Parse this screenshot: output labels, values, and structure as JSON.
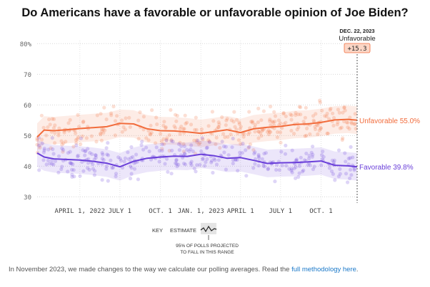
{
  "title": "Do Americans have a favorable or unfavorable opinion of Joe Biden?",
  "chart_data": {
    "type": "line",
    "x_start": "2021-12-25",
    "x_end": "2023-12-22",
    "ylim": [
      28,
      81
    ],
    "y_ticks": [
      30,
      40,
      50,
      60,
      70
    ],
    "y_tick_labels": [
      "30",
      "40",
      "50",
      "60",
      "70"
    ],
    "y_top_label": "80%",
    "x_ticks": [
      {
        "date": "2022-04-01",
        "label": "APRIL 1, 2022"
      },
      {
        "date": "2022-07-01",
        "label": "JULY 1"
      },
      {
        "date": "2022-10-01",
        "label": "OCT. 1"
      },
      {
        "date": "2023-01-01",
        "label": "JAN. 1, 2023"
      },
      {
        "date": "2023-04-01",
        "label": "APRIL 1"
      },
      {
        "date": "2023-07-01",
        "label": "JULY 1"
      },
      {
        "date": "2023-10-01",
        "label": "OCT. 1"
      }
    ],
    "grid": true,
    "series": [
      {
        "name": "Unfavorable",
        "end_label": "Unfavorable 55.0%",
        "color": "#f26c3c",
        "dates": [
          "2021-12-25",
          "2022-01-10",
          "2022-02-01",
          "2022-03-01",
          "2022-04-01",
          "2022-05-01",
          "2022-06-01",
          "2022-07-01",
          "2022-08-01",
          "2022-09-01",
          "2022-10-01",
          "2022-11-01",
          "2022-12-01",
          "2023-01-01",
          "2023-02-01",
          "2023-03-01",
          "2023-04-01",
          "2023-05-01",
          "2023-06-01",
          "2023-07-01",
          "2023-08-01",
          "2023-09-01",
          "2023-10-01",
          "2023-11-01",
          "2023-12-01",
          "2023-12-22"
        ],
        "values": [
          49.5,
          51.8,
          51.6,
          51.9,
          52.3,
          52.6,
          52.9,
          54.0,
          53.8,
          52.2,
          51.6,
          51.5,
          51.2,
          50.7,
          51.3,
          51.9,
          51.0,
          52.2,
          52.7,
          53.0,
          53.6,
          53.8,
          54.3,
          55.1,
          55.3,
          55.0
        ]
      },
      {
        "name": "Favorable",
        "end_label": "Favorable 39.8%",
        "color": "#6a3fd9",
        "dates": [
          "2021-12-25",
          "2022-01-10",
          "2022-02-01",
          "2022-03-01",
          "2022-04-01",
          "2022-05-01",
          "2022-06-01",
          "2022-07-01",
          "2022-08-01",
          "2022-09-01",
          "2022-10-01",
          "2022-11-01",
          "2022-12-01",
          "2023-01-01",
          "2023-02-01",
          "2023-03-01",
          "2023-04-01",
          "2023-05-01",
          "2023-06-01",
          "2023-07-01",
          "2023-08-01",
          "2023-09-01",
          "2023-10-01",
          "2023-11-01",
          "2023-12-01",
          "2023-12-22"
        ],
        "values": [
          44.3,
          43.0,
          42.4,
          42.2,
          42.0,
          41.6,
          41.0,
          39.8,
          41.6,
          42.6,
          43.0,
          43.3,
          43.2,
          43.9,
          43.4,
          42.6,
          42.8,
          41.9,
          40.9,
          41.1,
          41.2,
          41.4,
          41.7,
          40.3,
          40.1,
          39.8
        ]
      }
    ],
    "annotation": {
      "date_label": "DEC. 22, 2023",
      "leader_label": "Unfavorable",
      "margin_label": "+15.3"
    },
    "key": {
      "key_label": "KEY",
      "estimate_label": "ESTIMATE",
      "range_line1": "95% OF POLLS PROJECTED",
      "range_line2": "TO FALL IN THIS RANGE"
    }
  },
  "footer": {
    "text": "In November 2023, we made changes to the way we calculate our polling averages. Read the",
    "link_text": "full methodology here",
    "end": "."
  }
}
